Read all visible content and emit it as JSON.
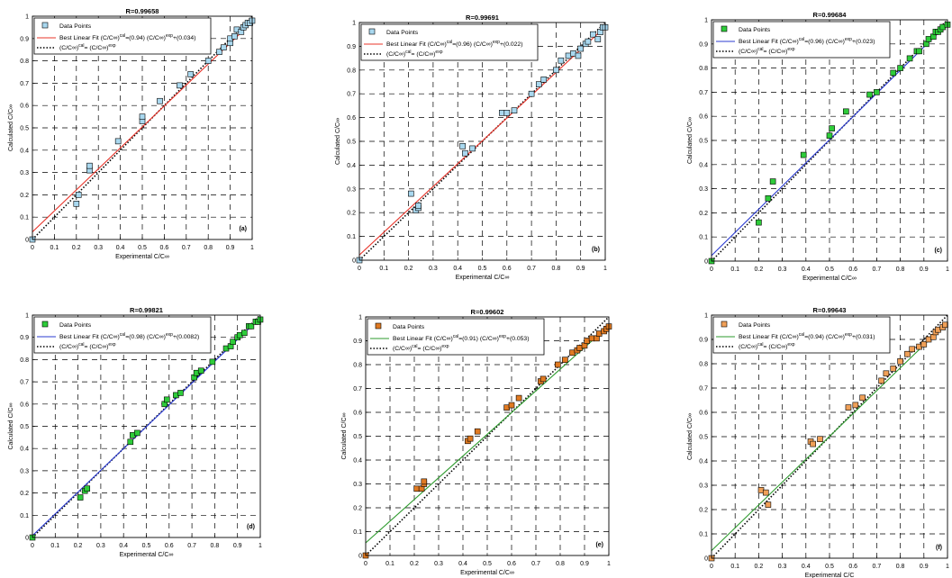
{
  "chart_data": [
    {
      "type": "scatter",
      "title": "R=0.99658",
      "panel_label": "(a)",
      "xlabel": "Experimental C/C∞",
      "ylabel": "Calculated C/C∞",
      "xlim": [
        0,
        1
      ],
      "ylim": [
        0,
        1
      ],
      "xticks": [
        "0",
        "0.1",
        "0.2",
        "0.3",
        "0.4",
        "0.5",
        "0.6",
        "0.7",
        "0.8",
        "0.9",
        "1"
      ],
      "yticks": [
        "0",
        "0.1",
        "0.2",
        "0.3",
        "0.4",
        "0.5",
        "0.6",
        "0.7",
        "0.8",
        "0.9",
        "1"
      ],
      "grid": true,
      "legend_position": "top-left",
      "legend": [
        "Data Points",
        "Best Linear Fit (C/C∞)cal=(0.94) (C/C∞)exp+(0.034)",
        "(C/C∞)cal= (C/C∞)exp"
      ],
      "marker_color": "#a9d8ef",
      "fit_color": "#e8342a",
      "fit": {
        "slope": 0.94,
        "intercept": 0.034
      },
      "points": [
        [
          0,
          0
        ],
        [
          0.2,
          0.16
        ],
        [
          0.21,
          0.2
        ],
        [
          0.26,
          0.31
        ],
        [
          0.26,
          0.33
        ],
        [
          0.39,
          0.44
        ],
        [
          0.5,
          0.53
        ],
        [
          0.5,
          0.55
        ],
        [
          0.58,
          0.62
        ],
        [
          0.67,
          0.69
        ],
        [
          0.72,
          0.74
        ],
        [
          0.8,
          0.8
        ],
        [
          0.85,
          0.84
        ],
        [
          0.87,
          0.86
        ],
        [
          0.9,
          0.88
        ],
        [
          0.9,
          0.9
        ],
        [
          0.92,
          0.91
        ],
        [
          0.93,
          0.94
        ],
        [
          0.95,
          0.93
        ],
        [
          0.96,
          0.95
        ],
        [
          0.97,
          0.96
        ],
        [
          0.98,
          0.97
        ],
        [
          0.99,
          0.97
        ],
        [
          1.0,
          0.98
        ]
      ]
    },
    {
      "type": "scatter",
      "title": "R=0.99691",
      "panel_label": "(b)",
      "xlabel": "Experimental C/C∞",
      "ylabel": "Calculated C/C∞",
      "xlim": [
        0,
        1
      ],
      "ylim": [
        0,
        1
      ],
      "xticks": [
        "0",
        "0.1",
        "0.2",
        "0.3",
        "0.4",
        "0.5",
        "0.6",
        "0.7",
        "0.8",
        "0.9",
        "1"
      ],
      "yticks": [
        "0",
        "0.1",
        "0.2",
        "0.3",
        "0.4",
        "0.5",
        "0.6",
        "0.7",
        "0.8",
        "0.9",
        "1"
      ],
      "grid": true,
      "legend_position": "top-left",
      "legend": [
        "Data Points",
        "Best Linear Fit (C/C∞)cal=(0.96) (C/C∞)exp+(0.022)",
        "(C/C∞)cal= (C/C∞)exp"
      ],
      "marker_color": "#a9d8ef",
      "fit_color": "#e8342a",
      "fit": {
        "slope": 0.96,
        "intercept": 0.022
      },
      "points": [
        [
          0,
          0
        ],
        [
          0.21,
          0.28
        ],
        [
          0.23,
          0.21
        ],
        [
          0.24,
          0.22
        ],
        [
          0.24,
          0.23
        ],
        [
          0.42,
          0.48
        ],
        [
          0.43,
          0.45
        ],
        [
          0.46,
          0.47
        ],
        [
          0.58,
          0.62
        ],
        [
          0.6,
          0.62
        ],
        [
          0.63,
          0.63
        ],
        [
          0.7,
          0.7
        ],
        [
          0.73,
          0.74
        ],
        [
          0.75,
          0.76
        ],
        [
          0.8,
          0.8
        ],
        [
          0.82,
          0.84
        ],
        [
          0.85,
          0.86
        ],
        [
          0.87,
          0.87
        ],
        [
          0.89,
          0.86
        ],
        [
          0.9,
          0.89
        ],
        [
          0.92,
          0.91
        ],
        [
          0.93,
          0.92
        ],
        [
          0.95,
          0.95
        ],
        [
          0.97,
          0.93
        ],
        [
          0.98,
          0.96
        ],
        [
          0.99,
          0.98
        ],
        [
          1.0,
          0.98
        ]
      ]
    },
    {
      "type": "scatter",
      "title": "R=0.99684",
      "panel_label": "(c)",
      "xlabel": "Experimental C/C∞",
      "ylabel": "Calculated C/C∞",
      "xlim": [
        0,
        1
      ],
      "ylim": [
        0,
        1
      ],
      "xticks": [
        "0",
        "0.1",
        "0.2",
        "0.3",
        "0.4",
        "0.5",
        "0.6",
        "0.7",
        "0.8",
        "0.9",
        "1"
      ],
      "yticks": [
        "0",
        "0.1",
        "0.2",
        "0.3",
        "0.4",
        "0.5",
        "0.6",
        "0.7",
        "0.8",
        "0.9",
        "1"
      ],
      "grid": true,
      "legend_position": "top-left",
      "legend": [
        "Data Points",
        "Best Linear Fit (C/C∞)cal=(0.96) (C/C∞)exp+(0.023)",
        "(C/C∞)cal= (C/C∞)exp"
      ],
      "marker_color": "#2ecc3a",
      "fit_color": "#2b3bd1",
      "fit": {
        "slope": 0.96,
        "intercept": 0.023
      },
      "points": [
        [
          0,
          0
        ],
        [
          0.2,
          0.16
        ],
        [
          0.24,
          0.26
        ],
        [
          0.26,
          0.33
        ],
        [
          0.39,
          0.44
        ],
        [
          0.5,
          0.52
        ],
        [
          0.51,
          0.55
        ],
        [
          0.57,
          0.62
        ],
        [
          0.67,
          0.69
        ],
        [
          0.7,
          0.7
        ],
        [
          0.77,
          0.78
        ],
        [
          0.8,
          0.8
        ],
        [
          0.84,
          0.84
        ],
        [
          0.87,
          0.87
        ],
        [
          0.88,
          0.87
        ],
        [
          0.91,
          0.9
        ],
        [
          0.92,
          0.92
        ],
        [
          0.94,
          0.93
        ],
        [
          0.95,
          0.95
        ],
        [
          0.96,
          0.95
        ],
        [
          0.97,
          0.96
        ],
        [
          0.98,
          0.97
        ],
        [
          1.0,
          0.98
        ]
      ]
    },
    {
      "type": "scatter",
      "title": "R=0.99821",
      "panel_label": "(d)",
      "xlabel": "Experimental C/C∞",
      "ylabel": "Calculated C/C∞",
      "xlim": [
        0,
        1
      ],
      "ylim": [
        0,
        1
      ],
      "xticks": [
        "0",
        "0.1",
        "0.2",
        "0.3",
        "0.4",
        "0.5",
        "0.6",
        "0.7",
        "0.8",
        "0.9",
        "1"
      ],
      "yticks": [
        "0",
        "0.1",
        "0.2",
        "0.3",
        "0.4",
        "0.5",
        "0.6",
        "0.7",
        "0.8",
        "0.9",
        "1"
      ],
      "grid": true,
      "legend_position": "top-left",
      "legend": [
        "Data Points",
        "Best Linear Fit (C/C∞)cal=(0.98) (C/C∞)exp+(0.0082)",
        "(C/C∞)cal= (C/C∞)exp"
      ],
      "marker_color": "#2ecc3a",
      "fit_color": "#2b3bd1",
      "fit": {
        "slope": 0.98,
        "intercept": 0.0082
      },
      "points": [
        [
          0,
          0
        ],
        [
          0.21,
          0.18
        ],
        [
          0.23,
          0.21
        ],
        [
          0.24,
          0.22
        ],
        [
          0.43,
          0.43
        ],
        [
          0.44,
          0.46
        ],
        [
          0.46,
          0.47
        ],
        [
          0.58,
          0.6
        ],
        [
          0.59,
          0.62
        ],
        [
          0.63,
          0.64
        ],
        [
          0.65,
          0.65
        ],
        [
          0.71,
          0.72
        ],
        [
          0.72,
          0.74
        ],
        [
          0.74,
          0.75
        ],
        [
          0.79,
          0.79
        ],
        [
          0.85,
          0.85
        ],
        [
          0.87,
          0.86
        ],
        [
          0.88,
          0.88
        ],
        [
          0.9,
          0.9
        ],
        [
          0.91,
          0.91
        ],
        [
          0.93,
          0.92
        ],
        [
          0.95,
          0.95
        ],
        [
          0.96,
          0.95
        ],
        [
          0.98,
          0.97
        ],
        [
          0.99,
          0.97
        ],
        [
          1.0,
          0.98
        ]
      ]
    },
    {
      "type": "scatter",
      "title": "R=0.99602",
      "panel_label": "(e)",
      "xlabel": "Experimental C/C∞",
      "ylabel": "Calculated C/C∞",
      "xlim": [
        0,
        1
      ],
      "ylim": [
        0,
        1
      ],
      "xticks": [
        "0",
        "0.1",
        "0.2",
        "0.3",
        "0.4",
        "0.5",
        "0.6",
        "0.7",
        "0.8",
        "0.9",
        "1"
      ],
      "yticks": [
        "0",
        "0.1",
        "0.2",
        "0.3",
        "0.4",
        "0.5",
        "0.6",
        "0.7",
        "0.8",
        "0.9",
        "1"
      ],
      "grid": true,
      "legend_position": "top-left",
      "legend": [
        "Data Points",
        "Best Linear Fit (C/C∞)cal=(0.91) (C/C∞)exp+(0.053)",
        "(C/C∞)cal= (C/C∞)exp"
      ],
      "marker_color": "#e07a22",
      "fit_color": "#2e9b2e",
      "fit": {
        "slope": 0.91,
        "intercept": 0.053
      },
      "points": [
        [
          0,
          0
        ],
        [
          0.21,
          0.28
        ],
        [
          0.23,
          0.28
        ],
        [
          0.24,
          0.3
        ],
        [
          0.24,
          0.31
        ],
        [
          0.42,
          0.48
        ],
        [
          0.43,
          0.49
        ],
        [
          0.46,
          0.52
        ],
        [
          0.58,
          0.62
        ],
        [
          0.6,
          0.63
        ],
        [
          0.63,
          0.66
        ],
        [
          0.72,
          0.73
        ],
        [
          0.73,
          0.74
        ],
        [
          0.79,
          0.8
        ],
        [
          0.82,
          0.82
        ],
        [
          0.85,
          0.85
        ],
        [
          0.87,
          0.86
        ],
        [
          0.88,
          0.87
        ],
        [
          0.9,
          0.88
        ],
        [
          0.91,
          0.9
        ],
        [
          0.93,
          0.91
        ],
        [
          0.95,
          0.91
        ],
        [
          0.96,
          0.93
        ],
        [
          0.98,
          0.94
        ],
        [
          0.99,
          0.95
        ],
        [
          1.0,
          0.96
        ]
      ]
    },
    {
      "type": "scatter",
      "title": "R=0.99643",
      "panel_label": "(f)",
      "xlabel": "Experimental C/C",
      "ylabel": "Calculated C/C∞",
      "xlim": [
        0,
        1
      ],
      "ylim": [
        0,
        1
      ],
      "xticks": [
        "0",
        "0.1",
        "0.2",
        "0.3",
        "0.4",
        "0.5",
        "0.6",
        "0.7",
        "0.8",
        "0.9",
        "1"
      ],
      "yticks": [
        "0",
        "0.1",
        "0.2",
        "0.3",
        "0.4",
        "0.5",
        "0.6",
        "0.7",
        "0.8",
        "0.9",
        "1"
      ],
      "grid": true,
      "legend_position": "top-left",
      "legend": [
        "Data Points",
        "Best Linear Fit (C/C∞)cal=(0.94) (C/C∞)exp+(0.031)",
        "(C/C∞)cal= (C/C∞)exp"
      ],
      "marker_color": "#f0a058",
      "fit_color": "#2e9b2e",
      "fit": {
        "slope": 0.94,
        "intercept": 0.031
      },
      "points": [
        [
          0,
          0
        ],
        [
          0.21,
          0.28
        ],
        [
          0.23,
          0.27
        ],
        [
          0.24,
          0.22
        ],
        [
          0.42,
          0.48
        ],
        [
          0.43,
          0.47
        ],
        [
          0.46,
          0.49
        ],
        [
          0.58,
          0.62
        ],
        [
          0.61,
          0.63
        ],
        [
          0.64,
          0.66
        ],
        [
          0.72,
          0.73
        ],
        [
          0.74,
          0.76
        ],
        [
          0.77,
          0.78
        ],
        [
          0.8,
          0.81
        ],
        [
          0.83,
          0.84
        ],
        [
          0.85,
          0.86
        ],
        [
          0.88,
          0.87
        ],
        [
          0.9,
          0.88
        ],
        [
          0.92,
          0.9
        ],
        [
          0.94,
          0.91
        ],
        [
          0.95,
          0.93
        ],
        [
          0.96,
          0.94
        ],
        [
          0.98,
          0.95
        ],
        [
          0.99,
          0.96
        ]
      ]
    }
  ]
}
